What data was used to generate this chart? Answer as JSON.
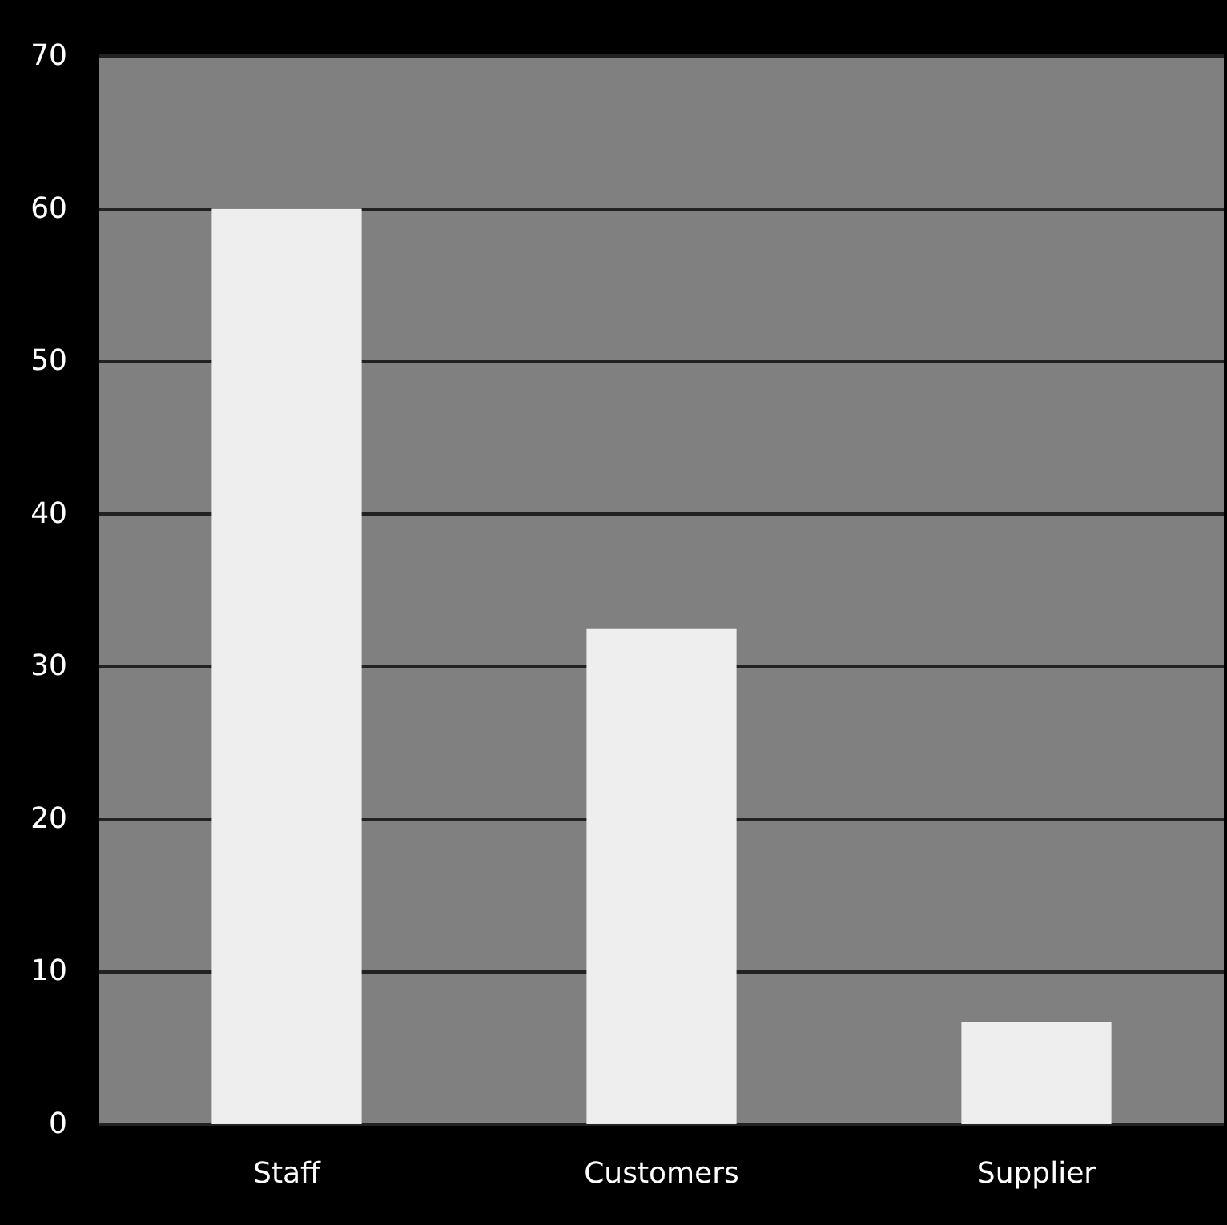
{
  "chart_data": {
    "type": "bar",
    "categories": [
      "Staff",
      "Customers",
      "Supplier"
    ],
    "values": [
      60,
      32.5,
      6.7
    ],
    "color": "#eeeeee",
    "ylim": [
      0,
      70
    ],
    "yticks": [
      0,
      10,
      20,
      30,
      40,
      50,
      60,
      70
    ],
    "grid": "y"
  }
}
